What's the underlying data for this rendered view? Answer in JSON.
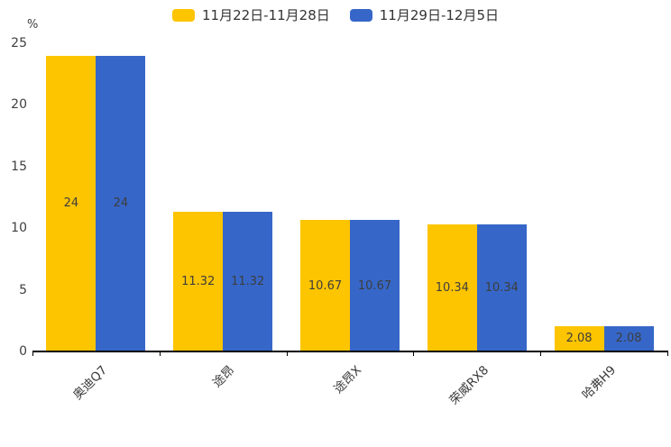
{
  "chart_data": {
    "type": "bar",
    "title": "",
    "unit_label": "%",
    "categories": [
      "奥迪Q7",
      "途昂",
      "途昂X",
      "荣威RX8",
      "哈弗H9"
    ],
    "series": [
      {
        "name": "11月22日-11月28日",
        "color": "#FDC400",
        "values": [
          24,
          11.32,
          10.67,
          10.34,
          2.08
        ]
      },
      {
        "name": "11月29日-12月5日",
        "color": "#3667C8",
        "values": [
          24,
          11.32,
          10.67,
          10.34,
          2.08
        ]
      }
    ],
    "value_labels": [
      [
        "24",
        "11.32",
        "10.67",
        "10.34",
        "2.08"
      ],
      [
        "24",
        "11.32",
        "10.67",
        "10.34",
        "2.08"
      ]
    ],
    "ylim": [
      0,
      25
    ],
    "yticks": [
      "0",
      "5",
      "10",
      "15",
      "20",
      "25"
    ],
    "grid": false,
    "legend_position": "top",
    "value_label_color": "#3d3d3d",
    "axis_color": "#000000",
    "text_color": "#3f3f3f"
  }
}
